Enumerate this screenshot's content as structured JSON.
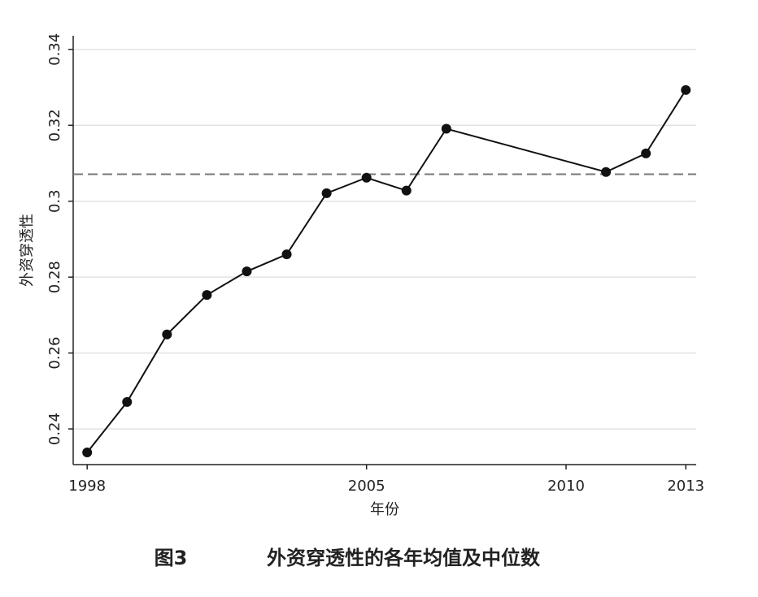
{
  "chart_data": {
    "type": "line",
    "x_label": "年份",
    "y_label": "外资穿透性",
    "figure_number": "图3",
    "title": "外资穿透性的各年均值及中位数",
    "x": [
      1998,
      1999,
      2000,
      2001,
      2002,
      2003,
      2004,
      2005,
      2006,
      2007,
      2011,
      2012,
      2013
    ],
    "series": [
      {
        "color": "#111111",
        "values": [
          0.2338,
          0.2471,
          0.2649,
          0.2753,
          0.2815,
          0.286,
          0.3021,
          0.3062,
          0.3028,
          0.3191,
          0.3077,
          0.3126,
          0.3293
        ]
      }
    ],
    "reference_line": 0.3071,
    "reference_color": "#777777",
    "xlim": [
      1997.65,
      2013.26
    ],
    "ylim": [
      0.2306,
      0.3436
    ],
    "xticks": [
      1998,
      2005,
      2010,
      2013
    ],
    "yticks": [
      0.24,
      0.26,
      0.28,
      0.3,
      0.32,
      0.34
    ],
    "grid": true
  }
}
